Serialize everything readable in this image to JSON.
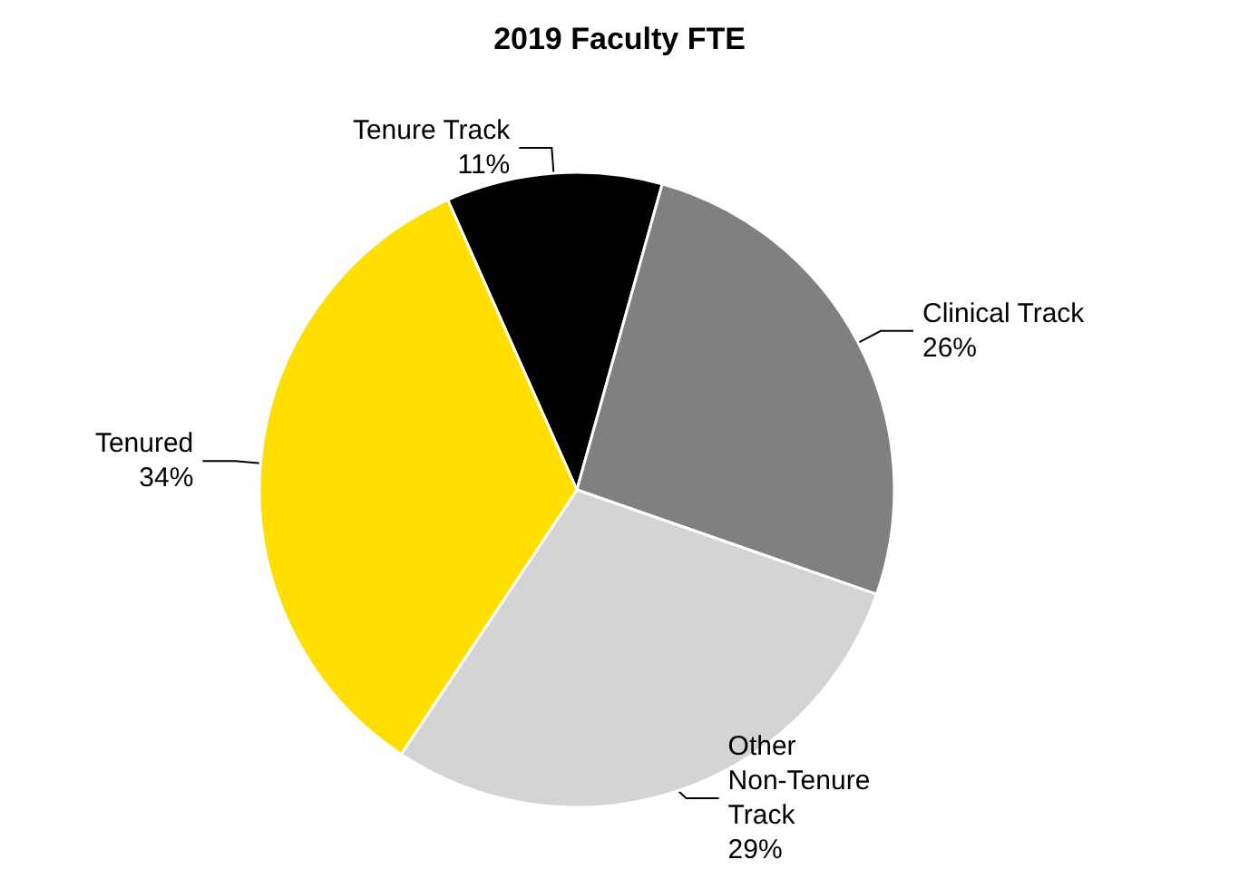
{
  "chart_data": {
    "type": "pie",
    "title": "2019 Faculty FTE",
    "categories": [
      "Tenure Track",
      "Clinical Track",
      "Other Non-Tenure Track",
      "Tenured"
    ],
    "values": [
      11,
      26,
      29,
      34
    ],
    "value_labels": [
      "11%",
      "26%",
      "29%",
      "34%"
    ],
    "colors": [
      "#000000",
      "#808080",
      "#d4d4d4",
      "#ffde00"
    ],
    "legend": false
  }
}
